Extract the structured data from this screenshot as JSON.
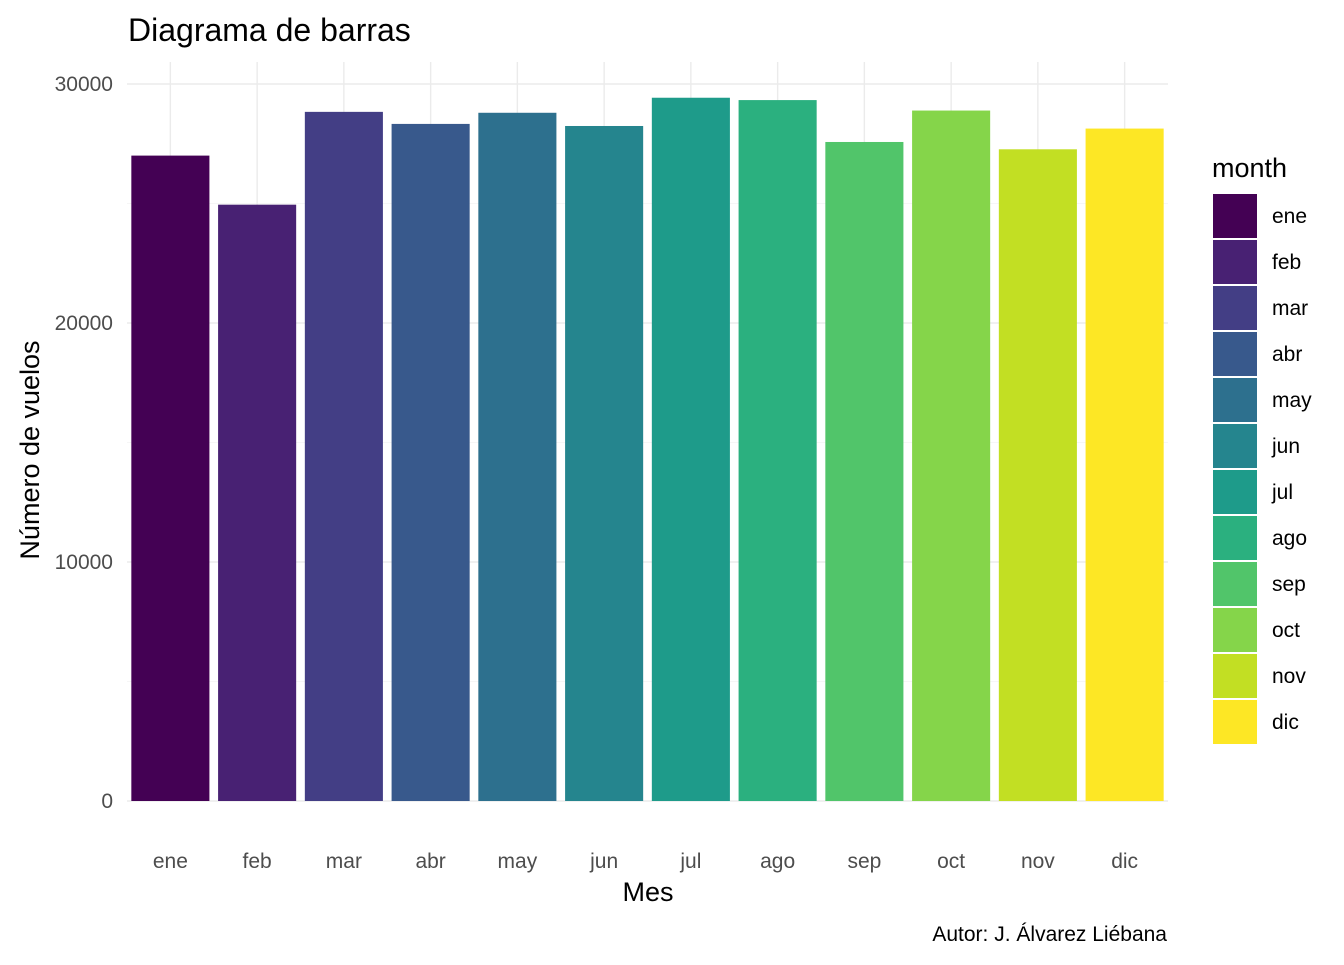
{
  "chart_data": {
    "type": "bar",
    "title": "Diagrama de barras",
    "xlabel": "Mes",
    "ylabel": "Número de vuelos",
    "caption": "Autor: J. Álvarez Liébana",
    "categories": [
      "ene",
      "feb",
      "mar",
      "abr",
      "may",
      "jun",
      "jul",
      "ago",
      "sep",
      "oct",
      "nov",
      "dic"
    ],
    "values": [
      27004,
      24951,
      28834,
      28330,
      28796,
      28243,
      29425,
      29327,
      27574,
      28889,
      27268,
      28135
    ],
    "colors": [
      "#440154",
      "#482173",
      "#433E85",
      "#38598C",
      "#2D708E",
      "#25858E",
      "#1E9B8A",
      "#2BB07F",
      "#51C56A",
      "#85D54A",
      "#C2DF23",
      "#FDE725"
    ],
    "ylim": [
      0,
      30000
    ],
    "yticks": [
      0,
      10000,
      20000,
      30000
    ],
    "grid": true,
    "legend": {
      "title": "month",
      "position": "right",
      "labels": [
        "ene",
        "feb",
        "mar",
        "abr",
        "may",
        "jun",
        "jul",
        "ago",
        "sep",
        "oct",
        "nov",
        "dic"
      ]
    }
  }
}
